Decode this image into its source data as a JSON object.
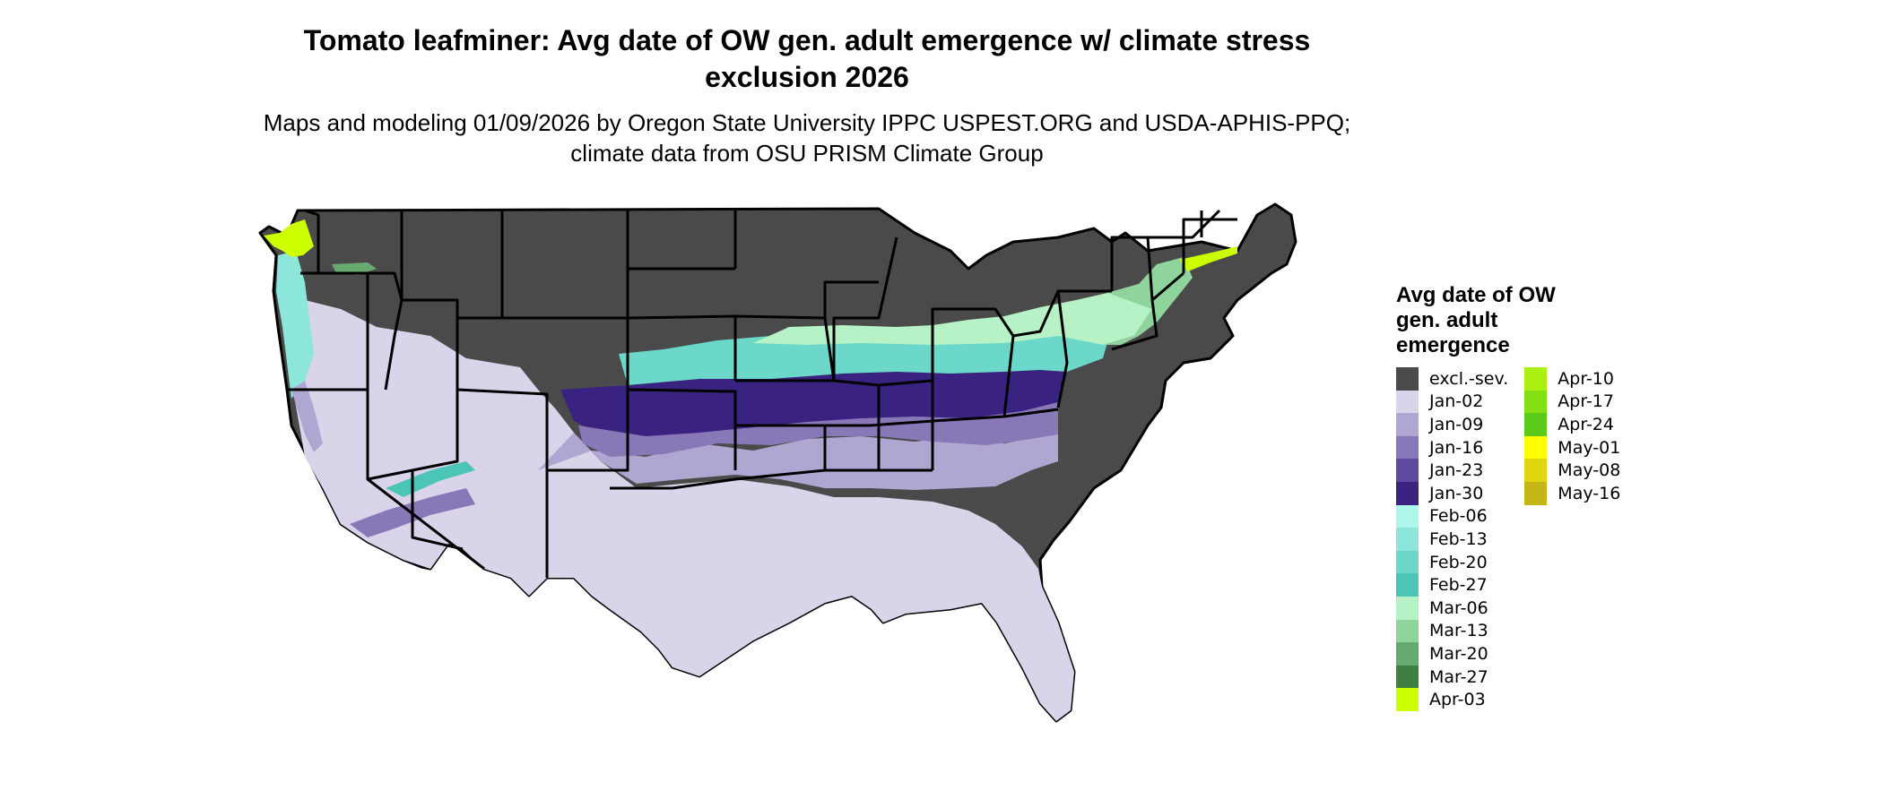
{
  "title": "Tomato leafminer: Avg date of OW gen. adult emergence w/ climate stress exclusion 2026",
  "subtitle": "Maps and modeling 01/09/2026 by Oregon State University IPPC USPEST.ORG and USDA-APHIS-PPQ; climate data from OSU PRISM Climate Group",
  "legend": {
    "title": "Avg date of OW gen. adult emergence",
    "col1": [
      {
        "label": "excl.-sev.",
        "color": "#4a4a4a"
      },
      {
        "label": "Jan-02",
        "color": "#d9d4ea"
      },
      {
        "label": "Jan-09",
        "color": "#b0a6d2"
      },
      {
        "label": "Jan-16",
        "color": "#8878b8"
      },
      {
        "label": "Jan-23",
        "color": "#5d4a9e"
      },
      {
        "label": "Jan-30",
        "color": "#3a2280"
      },
      {
        "label": "Feb-06",
        "color": "#aef5ea"
      },
      {
        "label": "Feb-13",
        "color": "#8de6da"
      },
      {
        "label": "Feb-20",
        "color": "#6cd8c9"
      },
      {
        "label": "Feb-27",
        "color": "#4bc6b6"
      },
      {
        "label": "Mar-06",
        "color": "#b6f2c5"
      },
      {
        "label": "Mar-13",
        "color": "#8fd49c"
      },
      {
        "label": "Mar-20",
        "color": "#66aa6f"
      },
      {
        "label": "Mar-27",
        "color": "#3f7f44"
      },
      {
        "label": "Apr-03",
        "color": "#ccff00"
      }
    ],
    "col2": [
      {
        "label": "Apr-10",
        "color": "#a9ef0f"
      },
      {
        "label": "Apr-17",
        "color": "#84de14"
      },
      {
        "label": "Apr-24",
        "color": "#5ccb18"
      },
      {
        "label": "May-01",
        "color": "#ffff00"
      },
      {
        "label": "May-08",
        "color": "#e1d50f"
      },
      {
        "label": "May-16",
        "color": "#c4b616"
      }
    ]
  }
}
